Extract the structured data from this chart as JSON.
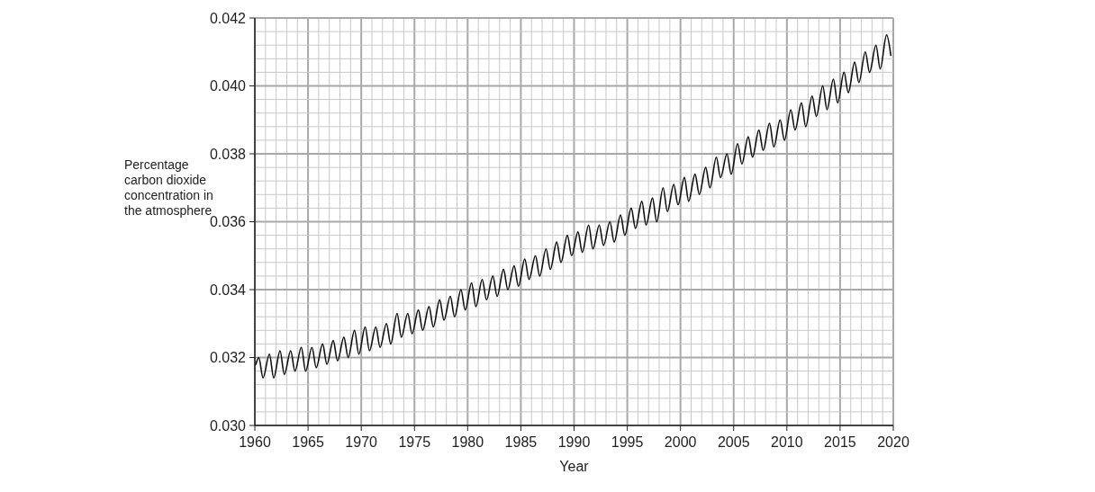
{
  "chart_data": {
    "type": "line",
    "xlabel": "Year",
    "ylabel": "Percentage carbon dioxide concentration in the atmosphere",
    "xlim": [
      1960,
      2020
    ],
    "ylim": [
      0.03,
      0.042
    ],
    "xticks": [
      1960,
      {
        "value": 1961,
        "label": null
      },
      {
        "value": 1962,
        "label": null
      },
      {
        "value": 1963,
        "label": null
      },
      {
        "value": 1964,
        "label": null
      },
      1965,
      {
        "value": 1966,
        "label": null
      },
      {
        "value": 1967,
        "label": null
      },
      {
        "value": 1968,
        "label": null
      },
      {
        "value": 1969,
        "label": null
      },
      1970,
      {
        "value": 1971,
        "label": null
      },
      {
        "value": 1972,
        "label": null
      },
      {
        "value": 1973,
        "label": null
      },
      {
        "value": 1974,
        "label": null
      },
      1975,
      {
        "value": 1976,
        "label": null
      },
      {
        "value": 1977,
        "label": null
      },
      {
        "value": 1978,
        "label": null
      },
      {
        "value": 1979,
        "label": null
      },
      1980,
      {
        "value": 1981,
        "label": null
      },
      {
        "value": 1982,
        "label": null
      },
      {
        "value": 1983,
        "label": null
      },
      {
        "value": 1984,
        "label": null
      },
      1985,
      {
        "value": 1986,
        "label": null
      },
      {
        "value": 1987,
        "label": null
      },
      {
        "value": 1988,
        "label": null
      },
      {
        "value": 1989,
        "label": null
      },
      1990,
      {
        "value": 1991,
        "label": null
      },
      {
        "value": 1992,
        "label": null
      },
      {
        "value": 1993,
        "label": null
      },
      {
        "value": 1994,
        "label": null
      },
      1995,
      {
        "value": 1996,
        "label": null
      },
      {
        "value": 1997,
        "label": null
      },
      {
        "value": 1998,
        "label": null
      },
      {
        "value": 1999,
        "label": null
      },
      2000,
      {
        "value": 2001,
        "label": null
      },
      {
        "value": 2002,
        "label": null
      },
      {
        "value": 2003,
        "label": null
      },
      {
        "value": 2004,
        "label": null
      },
      2005,
      {
        "value": 2006,
        "label": null
      },
      {
        "value": 2007,
        "label": null
      },
      {
        "value": 2008,
        "label": null
      },
      {
        "value": 2009,
        "label": null
      },
      2010,
      {
        "value": 2011,
        "label": null
      },
      {
        "value": 2012,
        "label": null
      },
      {
        "value": 2013,
        "label": null
      },
      {
        "value": 2014,
        "label": null
      },
      2015,
      {
        "value": 2016,
        "label": null
      },
      {
        "value": 2017,
        "label": null
      },
      {
        "value": 2018,
        "label": null
      },
      {
        "value": 2019,
        "label": null
      },
      2020
    ],
    "yticks": [
      {
        "value": 0.03,
        "label": "0.030"
      },
      {
        "value": 0.0304,
        "label": null
      },
      {
        "value": 0.0308,
        "label": null
      },
      {
        "value": 0.0312,
        "label": null
      },
      {
        "value": 0.0316,
        "label": null
      },
      0.032,
      {
        "value": 0.0324,
        "label": null
      },
      {
        "value": 0.0328,
        "label": null
      },
      {
        "value": 0.0332,
        "label": null
      },
      {
        "value": 0.0336,
        "label": null
      },
      0.034,
      {
        "value": 0.0344,
        "label": null
      },
      {
        "value": 0.0348,
        "label": null
      },
      {
        "value": 0.0352,
        "label": null
      },
      {
        "value": 0.0356,
        "label": null
      },
      0.036,
      {
        "value": 0.0364,
        "label": null
      },
      {
        "value": 0.0368,
        "label": null
      },
      {
        "value": 0.0372,
        "label": null
      },
      {
        "value": 0.0376,
        "label": null
      },
      0.038,
      {
        "value": 0.0384,
        "label": null
      },
      {
        "value": 0.0388,
        "label": null
      },
      {
        "value": 0.0392,
        "label": null
      },
      {
        "value": 0.0396,
        "label": null
      },
      {
        "value": 0.04,
        "label": "0.040"
      },
      {
        "value": 0.0404,
        "label": null
      },
      {
        "value": 0.0408,
        "label": null
      },
      {
        "value": 0.0412,
        "label": null
      },
      {
        "value": 0.0416,
        "label": null
      },
      0.042
    ],
    "grid": true,
    "marker": "none",
    "line_style": "solid",
    "series": [
      {
        "color": "#111111",
        "x": [
          1960.1,
          1960.37,
          1960.77,
          1961.37,
          1961.77,
          1962.37,
          1962.77,
          1963.37,
          1963.77,
          1964.37,
          1964.77,
          1965.37,
          1965.77,
          1966.37,
          1966.77,
          1967.37,
          1967.77,
          1968.37,
          1968.77,
          1969.37,
          1969.77,
          1970.37,
          1970.77,
          1971.37,
          1971.77,
          1972.37,
          1972.77,
          1973.37,
          1973.77,
          1974.37,
          1974.77,
          1975.37,
          1975.77,
          1976.37,
          1976.77,
          1977.37,
          1977.77,
          1978.37,
          1978.77,
          1979.37,
          1979.77,
          1980.37,
          1980.77,
          1981.37,
          1981.77,
          1982.37,
          1982.77,
          1983.37,
          1983.77,
          1984.37,
          1984.77,
          1985.37,
          1985.77,
          1986.37,
          1986.77,
          1987.37,
          1987.77,
          1988.37,
          1988.77,
          1989.37,
          1989.77,
          1990.37,
          1990.77,
          1991.37,
          1991.77,
          1992.37,
          1992.77,
          1993.37,
          1993.77,
          1994.37,
          1994.77,
          1995.37,
          1995.77,
          1996.37,
          1996.77,
          1997.37,
          1997.77,
          1998.37,
          1998.77,
          1999.37,
          1999.77,
          2000.37,
          2000.77,
          2001.37,
          2001.77,
          2002.37,
          2002.77,
          2003.37,
          2003.77,
          2004.37,
          2004.77,
          2005.37,
          2005.77,
          2006.37,
          2006.77,
          2007.37,
          2007.77,
          2008.37,
          2008.77,
          2009.37,
          2009.77,
          2010.37,
          2010.77,
          2011.37,
          2011.77,
          2012.37,
          2012.77,
          2013.37,
          2013.77,
          2014.37,
          2014.77,
          2015.37,
          2015.77,
          2016.37,
          2016.77,
          2017.37,
          2017.77,
          2018.37,
          2018.77,
          2019.37,
          2019.77
        ],
        "values": [
          0.0318,
          0.032,
          0.0314,
          0.0321,
          0.0314,
          0.0322,
          0.0315,
          0.0322,
          0.0316,
          0.0323,
          0.0316,
          0.0323,
          0.0317,
          0.0324,
          0.0318,
          0.0325,
          0.0319,
          0.0326,
          0.032,
          0.0328,
          0.0321,
          0.0329,
          0.0322,
          0.0329,
          0.0323,
          0.033,
          0.0324,
          0.0333,
          0.0326,
          0.0333,
          0.0327,
          0.0334,
          0.0328,
          0.0335,
          0.0329,
          0.0337,
          0.0331,
          0.0338,
          0.0332,
          0.034,
          0.0334,
          0.0342,
          0.0335,
          0.0343,
          0.0337,
          0.0344,
          0.0338,
          0.0346,
          0.034,
          0.0347,
          0.0341,
          0.0349,
          0.0343,
          0.035,
          0.0344,
          0.0352,
          0.0346,
          0.0354,
          0.0348,
          0.0356,
          0.035,
          0.0357,
          0.0351,
          0.0359,
          0.0352,
          0.0359,
          0.0353,
          0.036,
          0.0354,
          0.0362,
          0.0356,
          0.0364,
          0.0358,
          0.0366,
          0.0359,
          0.0367,
          0.036,
          0.037,
          0.0363,
          0.0371,
          0.0365,
          0.0373,
          0.0366,
          0.0374,
          0.0368,
          0.0376,
          0.037,
          0.0379,
          0.0373,
          0.038,
          0.0374,
          0.0383,
          0.0377,
          0.0385,
          0.0379,
          0.0387,
          0.0381,
          0.0389,
          0.0382,
          0.039,
          0.0384,
          0.0393,
          0.0387,
          0.0395,
          0.0388,
          0.0397,
          0.0391,
          0.04,
          0.0393,
          0.0402,
          0.0395,
          0.0404,
          0.0398,
          0.0407,
          0.0401,
          0.041,
          0.0404,
          0.0412,
          0.0405,
          0.0415,
          0.0409
        ]
      }
    ]
  }
}
